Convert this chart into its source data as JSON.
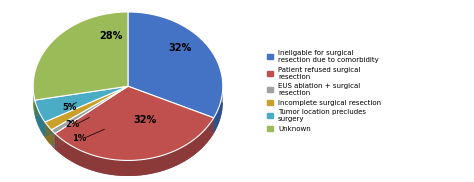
{
  "slices": [
    32,
    32,
    1,
    2,
    5,
    28
  ],
  "colors": [
    "#4472C4",
    "#C0504D",
    "#9FA0A0",
    "#C8A02A",
    "#4BACC6",
    "#9BBB59"
  ],
  "dark_colors": [
    "#2D508A",
    "#8B3A39",
    "#707070",
    "#8B7020",
    "#2E7A8A",
    "#6A8A35"
  ],
  "labels": [
    "32%",
    "32%",
    "1%",
    "2%",
    "5%",
    "28%"
  ],
  "legend_labels": [
    "Ineligable for surgical\nresection due to comorbidity",
    "Patient refused surgical\nresection",
    "EUS ablation + surgical\nresection",
    "Incomplete surgical resection",
    "Tumor location precludes\nsurgery",
    "Unknown"
  ],
  "startangle": 90,
  "figsize": [
    4.74,
    1.82
  ],
  "dpi": 100,
  "bg_color": "#FFFFFF"
}
